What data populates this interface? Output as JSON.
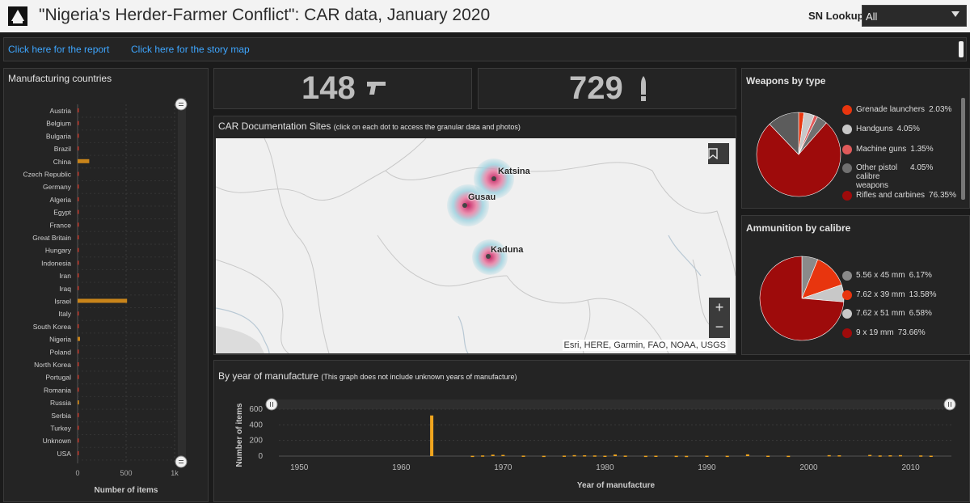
{
  "header": {
    "title": "\"Nigeria's Herder-Farmer Conflict\": CAR data, January 2020",
    "sn_lookup_label": "SN Lookup:",
    "sn_lookup_value": "All"
  },
  "links": {
    "report": "Click here for the report",
    "story_map": "Click here for the story map"
  },
  "kpis": {
    "weapons_count": "148",
    "ammo_count": "729",
    "weapons_icon": "pistol-icon",
    "ammo_icon": "bullet-icon"
  },
  "map": {
    "title": "CAR Documentation Sites",
    "subtitle": "(click on each dot to access the granular data and photos)",
    "cities": [
      "Katsina",
      "Gusau",
      "Kaduna"
    ],
    "zoom_in": "+",
    "zoom_out": "−",
    "attribution": "Esri, HERE, Garmin, FAO, NOAA, USGS"
  },
  "manufacturing": {
    "title": "Manufacturing countries"
  },
  "weapons": {
    "title": "Weapons by type"
  },
  "ammo": {
    "title": "Ammunition by calibre"
  },
  "year": {
    "title": "By year of manufacture",
    "subtitle": "(This graph does not include unknown years of manufacture)"
  },
  "chart_data": [
    {
      "type": "bar",
      "orientation": "horizontal",
      "title": "Manufacturing countries",
      "xlabel": "Number of items",
      "ylabel": "",
      "xlim": [
        0,
        1000
      ],
      "x_ticks": [
        "0",
        "500",
        "1k"
      ],
      "categories": [
        "Austria",
        "Belgium",
        "Bulgaria",
        "Brazil",
        "China",
        "Czech Republic",
        "Germany",
        "Algeria",
        "Egypt",
        "France",
        "Great Britain",
        "Hungary",
        "Indonesia",
        "Iran",
        "Iraq",
        "Israel",
        "Italy",
        "South Korea",
        "Nigeria",
        "Poland",
        "North Korea",
        "Portugal",
        "Romania",
        "Russia",
        "Serbia",
        "Turkey",
        "Unknown",
        "USA"
      ],
      "values": [
        3,
        6,
        3,
        3,
        120,
        4,
        3,
        3,
        2,
        5,
        2,
        2,
        2,
        2,
        3,
        510,
        2,
        3,
        25,
        3,
        2,
        2,
        6,
        15,
        6,
        3,
        2,
        3
      ],
      "colors": {
        "bar": "#c8841a",
        "small_bar": "#c0392b"
      }
    },
    {
      "type": "pie",
      "title": "Weapons by type",
      "categories": [
        "Grenade launchers",
        "Handguns",
        "Machine guns",
        "Other pistol calibre weapons",
        "Rifles and carbines"
      ],
      "values": [
        2.03,
        4.05,
        1.35,
        4.05,
        76.35
      ],
      "labels": [
        "2.03%",
        "4.05%",
        "1.35%",
        "4.05%",
        "76.35%"
      ],
      "colors": [
        "#e8350e",
        "#c8c8c8",
        "#e05a5a",
        "#707070",
        "#9e0b0b"
      ],
      "extra_slice_color": "#5c5c5c",
      "extra_slice_value": 12.17
    },
    {
      "type": "pie",
      "title": "Ammunition by calibre",
      "categories": [
        "5.56 x 45 mm",
        "7.62 x 39 mm",
        "7.62 x 51 mm",
        "9 x 19 mm"
      ],
      "values": [
        6.17,
        13.58,
        6.58,
        73.66
      ],
      "labels": [
        "6.17%",
        "13.58%",
        "6.58%",
        "73.66%"
      ],
      "colors": [
        "#8a8a8a",
        "#e8350e",
        "#c8c8c8",
        "#9e0b0b"
      ]
    },
    {
      "type": "bar",
      "title": "By year of manufacture",
      "xlabel": "Year of manufacture",
      "ylabel": "Number of items",
      "ylim": [
        0,
        600
      ],
      "y_ticks": [
        0,
        200,
        400,
        600
      ],
      "xlim": [
        1948,
        2014
      ],
      "x_ticks": [
        1950,
        1960,
        1970,
        1980,
        1990,
        2000,
        2010
      ],
      "x": [
        1963,
        1967,
        1968,
        1969,
        1970,
        1972,
        1974,
        1976,
        1977,
        1978,
        1979,
        1980,
        1981,
        1982,
        1984,
        1985,
        1987,
        1988,
        1990,
        1992,
        1994,
        1996,
        1998,
        2002,
        2003,
        2006,
        2007,
        2008,
        2009,
        2011,
        2012
      ],
      "values": [
        520,
        4,
        8,
        18,
        15,
        6,
        4,
        6,
        12,
        10,
        8,
        5,
        20,
        6,
        4,
        5,
        4,
        3,
        5,
        4,
        22,
        5,
        4,
        12,
        10,
        15,
        8,
        10,
        12,
        8,
        5
      ],
      "colors": {
        "bar": "#f0a51e"
      }
    }
  ]
}
